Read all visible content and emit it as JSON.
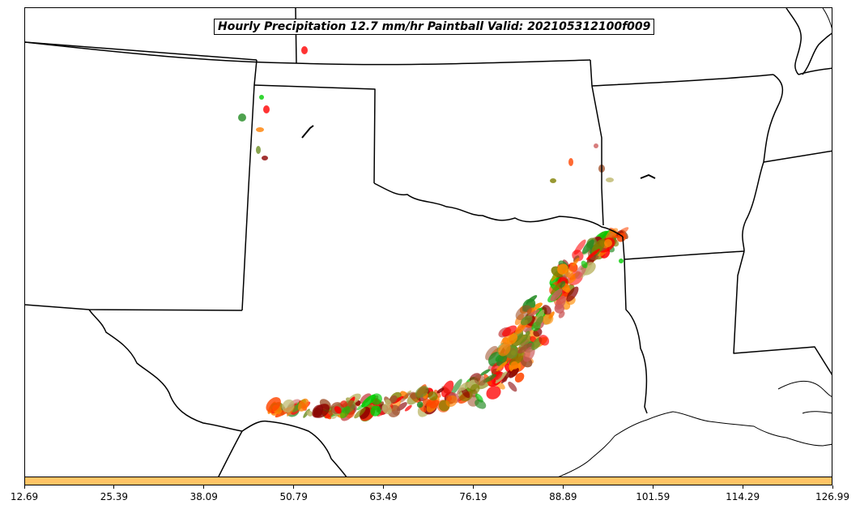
{
  "title": "Hourly Precipitation 12.7 mm/hr Paintball Valid: 202105312100f009",
  "colorbar": {
    "fill_color": "#ffc466",
    "ticks": [
      "12.69",
      "25.39",
      "38.09",
      "50.79",
      "63.49",
      "76.19",
      "88.89",
      "101.59",
      "114.29",
      "126.99"
    ]
  },
  "colors": {
    "member_palette": [
      "#00cc00",
      "#ff0000",
      "#ff7f00",
      "#6b8e23",
      "#8b0000",
      "#228b22",
      "#cd5c5c",
      "#a0522d",
      "#bdb76b",
      "#ff4500",
      "#808000",
      "#ff8c00"
    ]
  }
}
